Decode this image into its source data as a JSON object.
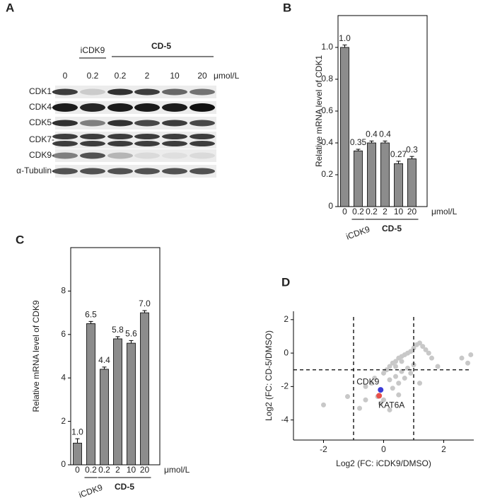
{
  "blot": {
    "label": "A",
    "treatments": [
      "iCDK9",
      "CD-5"
    ],
    "lanes": [
      "0",
      "0.2",
      "0.2",
      "2",
      "10",
      "20"
    ],
    "unit": "μmol/L",
    "rows": [
      "CDK1-",
      "CDK4-",
      "CDK5-",
      "CDK7-",
      "CDK9-",
      "α-Tubulin-"
    ]
  },
  "chart_data": [
    {
      "type": "bar",
      "label": "B",
      "ylabel": "Relative  mRNA level of CDK1",
      "categories": [
        "0",
        "0.2",
        "0.2",
        "2",
        "10",
        "20"
      ],
      "values": [
        1.0,
        0.35,
        0.4,
        0.4,
        0.27,
        0.3
      ],
      "value_labels": [
        "1.0",
        "0.35",
        "0.4",
        "0.4",
        "0.27",
        "0.3"
      ],
      "errors": [
        0.015,
        0.01,
        0.012,
        0.012,
        0.015,
        0.015
      ],
      "color": "#8c8c8c",
      "ylim": [
        0,
        1.2
      ],
      "yticks": [
        0,
        0.2,
        0.4,
        0.6,
        0.8,
        {
          "value": 1,
          "label": "1.0"
        }
      ],
      "unit": "μmol/L",
      "groups": [
        "iCDK9",
        "CD-5"
      ]
    },
    {
      "type": "bar",
      "label": "C",
      "ylabel": "Relative  mRNA level of CDK9",
      "categories": [
        "0",
        "0.2",
        "0.2",
        "2",
        "10",
        "20"
      ],
      "values": [
        1.0,
        6.5,
        4.4,
        5.8,
        5.6,
        7.0
      ],
      "value_labels": [
        "1.0",
        "6.5",
        "4.4",
        "5.8",
        "5.6",
        "7.0"
      ],
      "errors": [
        0.2,
        0.1,
        0.1,
        0.1,
        0.12,
        0.1
      ],
      "color": "#8c8c8c",
      "ylim": [
        0,
        10
      ],
      "yticks": [
        0,
        2,
        4,
        6,
        8
      ],
      "unit": "μmol/L",
      "groups": [
        "iCDK9",
        "CD-5"
      ]
    },
    {
      "type": "scatter",
      "label": "D",
      "xlabel": "Log2 (FC: iCDK9/DMSO)",
      "ylabel": "Log2 (FC: CD-5/DMSO)",
      "xlim": [
        -3,
        3
      ],
      "ylim": [
        -5.2,
        2.5
      ],
      "xticks": [
        -2,
        0,
        2
      ],
      "yticks": [
        2,
        0,
        -2,
        -4
      ],
      "vlines": [
        -1,
        1
      ],
      "hlines": [
        -1
      ],
      "series": [
        {
          "color": "#c8c8c8",
          "x": [
            -2.0,
            -1.2,
            -0.8,
            -0.6,
            -0.4,
            -0.3,
            -0.2,
            0,
            0.1,
            0.2,
            0.3,
            0.4,
            0.5,
            0.6,
            0.7,
            0.8,
            0.9,
            1.0,
            1.1,
            1.2,
            1.3,
            1.4,
            1.5,
            1.6,
            0.2,
            0.4,
            0.6,
            0.8,
            1.0,
            0.3,
            0.5,
            0.7,
            0.9,
            0,
            0.2,
            -0.1,
            0.5,
            1.2,
            2.6,
            2.8,
            2.9,
            0.4,
            0.6,
            1.8,
            -0.6
          ],
          "y": [
            -3.1,
            -2.6,
            -3.3,
            -2.0,
            -1.8,
            -1.5,
            -2.6,
            -1.2,
            -1.0,
            -0.8,
            -0.6,
            -0.5,
            -0.3,
            -0.2,
            -0.1,
            0,
            0.1,
            0.3,
            0.5,
            0.6,
            0.4,
            0.2,
            0,
            -0.3,
            -1.6,
            -1.4,
            -1.1,
            -0.9,
            -0.7,
            -2.1,
            -1.8,
            -1.5,
            -1.2,
            -2.8,
            -3.4,
            -3.0,
            -2.5,
            -1.8,
            -0.3,
            -0.6,
            -0.1,
            -0.8,
            -0.5,
            -0.8,
            -2.8
          ]
        },
        {
          "name": "CDK9",
          "color": "#3b3bd6",
          "x": [
            -0.1
          ],
          "y": [
            -2.2
          ]
        },
        {
          "name": "KAT6A",
          "color": "#e8504a",
          "x": [
            -0.15
          ],
          "y": [
            -2.55
          ]
        }
      ]
    }
  ]
}
